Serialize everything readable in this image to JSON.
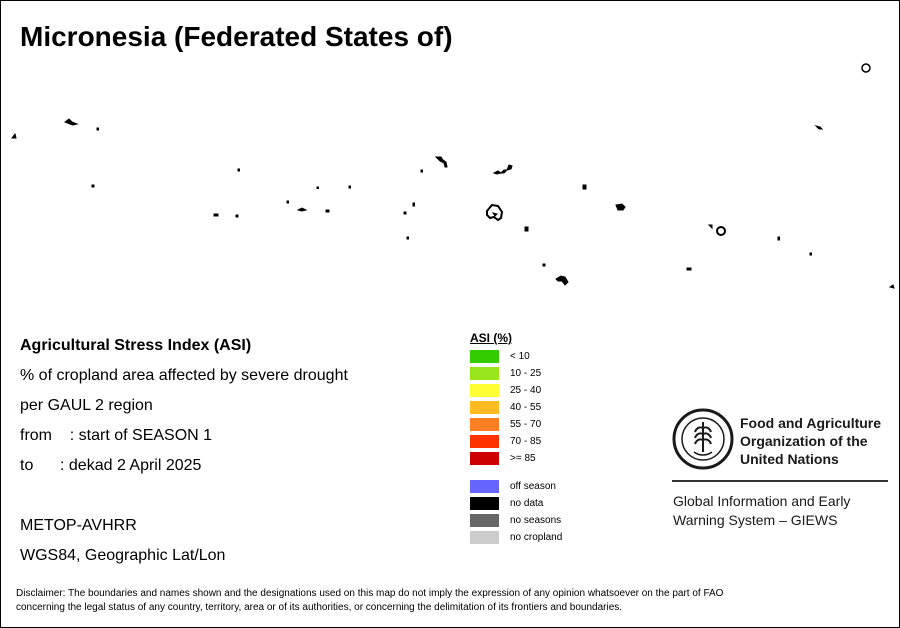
{
  "map": {
    "title": "Micronesia (Federated States of)"
  },
  "info": {
    "index_name": "Agricultural Stress Index (ASI)",
    "line1": "% of cropland area affected by severe drought",
    "line2": "per GAUL 2 region",
    "from_line": "from    : start of SEASON 1",
    "to_line": "to      : dekad 2 April 2025",
    "sensor": "METOP-AVHRR",
    "projection": "WGS84, Geographic Lat/Lon"
  },
  "legend": {
    "title": "ASI (%)",
    "classes": [
      {
        "label": "< 10",
        "color": "#33cc00"
      },
      {
        "label": "10 - 25",
        "color": "#99e61a"
      },
      {
        "label": "25 - 40",
        "color": "#ffff33"
      },
      {
        "label": "40 - 55",
        "color": "#ffbb22"
      },
      {
        "label": "55 - 70",
        "color": "#ff7f22"
      },
      {
        "label": "70 - 85",
        "color": "#ff3300"
      },
      {
        "label": ">= 85",
        "color": "#cc0000"
      }
    ],
    "special": [
      {
        "label": "off season",
        "color": "#6666ff"
      },
      {
        "label": "no data",
        "color": "#000000"
      },
      {
        "label": "no seasons",
        "color": "#666666"
      },
      {
        "label": "no cropland",
        "color": "#cccccc"
      }
    ]
  },
  "organization": {
    "logo_icon": "fao-logo-icon",
    "name_lines": [
      "Food and Agriculture",
      "Organization of the",
      "United Nations"
    ],
    "system_lines": [
      "Global Information and Early",
      "Warning System – GIEWS"
    ]
  },
  "disclaimer": {
    "line1": "Disclaimer: The boundaries and names shown and the designations used on this map do not imply the expression of any opinion whatsoever on the part of FAO",
    "line2": "concerning the legal status of any country, territory, area or of its authorities, or concerning the delimitation of its frontiers and boundaries."
  }
}
